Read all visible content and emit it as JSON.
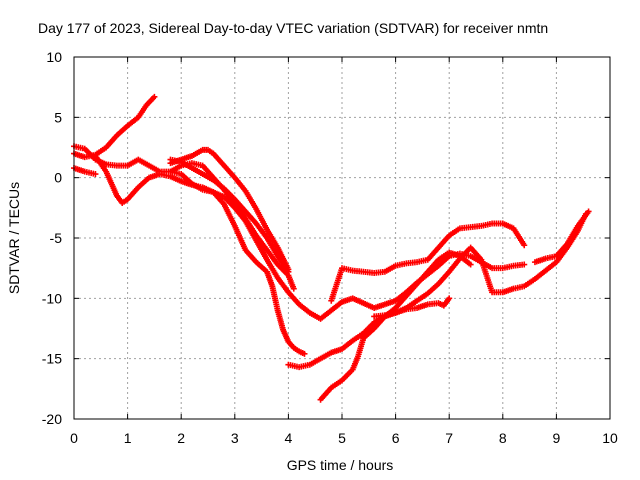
{
  "chart_data": {
    "type": "scatter",
    "title": "Day 177 of 2023, Sidereal Day-to-day VTEC variation (SDTVAR) for receiver nmtn",
    "xlabel": "GPS time / hours",
    "ylabel": "SDTVAR / TECUs",
    "xlim": [
      0,
      10
    ],
    "ylim": [
      -20,
      10
    ],
    "xticks": [
      0,
      1,
      2,
      3,
      4,
      5,
      6,
      7,
      8,
      9,
      10
    ],
    "yticks": [
      -20,
      -15,
      -10,
      -5,
      0,
      5,
      10
    ],
    "grid": true,
    "marker": "+",
    "color": "#ff0000",
    "series": [
      {
        "points": [
          [
            0.0,
            2.0
          ],
          [
            0.2,
            1.7
          ],
          [
            0.4,
            1.9
          ],
          [
            0.6,
            2.5
          ],
          [
            0.8,
            3.5
          ],
          [
            1.0,
            4.3
          ],
          [
            1.2,
            5.0
          ],
          [
            1.35,
            6.0
          ],
          [
            1.5,
            6.7
          ]
        ]
      },
      {
        "points": [
          [
            0.0,
            2.6
          ],
          [
            0.2,
            2.4
          ],
          [
            0.4,
            1.5
          ],
          [
            0.6,
            1.1
          ],
          [
            0.8,
            1.0
          ],
          [
            1.0,
            1.0
          ],
          [
            1.2,
            1.5
          ],
          [
            1.4,
            1.0
          ],
          [
            1.6,
            0.5
          ],
          [
            1.8,
            0.5
          ],
          [
            2.0,
            0.3
          ],
          [
            2.2,
            -0.5
          ],
          [
            2.4,
            -1.0
          ],
          [
            2.6,
            -1.2
          ],
          [
            2.8,
            -1.6
          ],
          [
            3.0,
            -2.5
          ],
          [
            3.2,
            -3.6
          ],
          [
            3.4,
            -5.2
          ],
          [
            3.6,
            -6.8
          ],
          [
            3.8,
            -8.3
          ],
          [
            4.0,
            -9.5
          ],
          [
            4.2,
            -10.5
          ],
          [
            4.4,
            -11.2
          ],
          [
            4.6,
            -11.7
          ],
          [
            4.8,
            -11.0
          ],
          [
            5.0,
            -10.3
          ],
          [
            5.2,
            -10.0
          ],
          [
            5.4,
            -10.4
          ],
          [
            5.6,
            -10.8
          ],
          [
            5.8,
            -10.5
          ],
          [
            6.0,
            -10.2
          ],
          [
            6.2,
            -9.5
          ],
          [
            6.4,
            -8.7
          ],
          [
            6.6,
            -8.0
          ],
          [
            6.8,
            -7.3
          ],
          [
            7.0,
            -6.5
          ],
          [
            7.2,
            -6.3
          ],
          [
            7.4,
            -6.5
          ],
          [
            7.6,
            -7.0
          ],
          [
            7.8,
            -7.5
          ],
          [
            8.0,
            -7.5
          ],
          [
            8.2,
            -7.3
          ],
          [
            8.4,
            -7.2
          ]
        ]
      },
      {
        "points": [
          [
            0.0,
            0.8
          ],
          [
            0.2,
            0.5
          ],
          [
            0.4,
            0.3
          ]
        ]
      },
      {
        "points": [
          [
            0.4,
            1.8
          ],
          [
            0.6,
            0.5
          ],
          [
            0.8,
            -1.5
          ],
          [
            0.9,
            -2.1
          ],
          [
            1.0,
            -1.8
          ],
          [
            1.2,
            -0.8
          ],
          [
            1.4,
            0.0
          ],
          [
            1.6,
            0.3
          ],
          [
            1.8,
            0.1
          ],
          [
            2.0,
            -0.3
          ],
          [
            2.2,
            -0.6
          ],
          [
            2.4,
            -0.8
          ],
          [
            2.6,
            -1.2
          ],
          [
            2.8,
            -2.2
          ],
          [
            3.0,
            -4.0
          ],
          [
            3.2,
            -6.0
          ],
          [
            3.4,
            -7.0
          ],
          [
            3.6,
            -7.8
          ],
          [
            3.7,
            -9.0
          ],
          [
            3.8,
            -11.0
          ],
          [
            3.9,
            -12.6
          ],
          [
            4.0,
            -13.6
          ],
          [
            4.1,
            -14.1
          ],
          [
            4.2,
            -14.4
          ],
          [
            4.3,
            -14.6
          ]
        ]
      },
      {
        "points": [
          [
            1.8,
            0.5
          ],
          [
            2.0,
            1.0
          ],
          [
            2.2,
            1.2
          ],
          [
            2.4,
            1.0
          ],
          [
            2.6,
            0.0
          ],
          [
            2.8,
            -1.0
          ],
          [
            3.0,
            -2.2
          ],
          [
            3.2,
            -3.4
          ],
          [
            3.4,
            -4.8
          ],
          [
            3.6,
            -6.0
          ],
          [
            3.8,
            -7.2
          ],
          [
            4.0,
            -8.1
          ],
          [
            4.1,
            -9.2
          ]
        ]
      },
      {
        "points": [
          [
            1.8,
            1.2
          ],
          [
            2.0,
            1.5
          ],
          [
            2.2,
            1.8
          ],
          [
            2.4,
            2.3
          ],
          [
            2.5,
            2.3
          ],
          [
            2.6,
            2.0
          ],
          [
            2.8,
            1.0
          ],
          [
            3.0,
            0.0
          ],
          [
            3.2,
            -1.1
          ],
          [
            3.4,
            -2.6
          ],
          [
            3.6,
            -4.3
          ],
          [
            3.8,
            -5.8
          ],
          [
            3.9,
            -6.7
          ],
          [
            4.0,
            -7.6
          ]
        ]
      },
      {
        "points": [
          [
            1.8,
            1.5
          ],
          [
            2.0,
            1.3
          ],
          [
            2.2,
            0.8
          ],
          [
            2.4,
            0.3
          ],
          [
            2.6,
            -0.2
          ],
          [
            2.8,
            -0.9
          ],
          [
            3.0,
            -1.8
          ],
          [
            3.2,
            -2.8
          ],
          [
            3.4,
            -3.8
          ],
          [
            3.6,
            -5.0
          ],
          [
            3.8,
            -6.5
          ],
          [
            4.0,
            -7.8
          ]
        ]
      },
      {
        "points": [
          [
            4.0,
            -15.5
          ],
          [
            4.2,
            -15.7
          ],
          [
            4.4,
            -15.5
          ],
          [
            4.6,
            -15.0
          ],
          [
            4.8,
            -14.5
          ],
          [
            5.0,
            -14.2
          ],
          [
            5.2,
            -13.5
          ],
          [
            5.4,
            -12.9
          ],
          [
            5.6,
            -12.0
          ],
          [
            5.8,
            -11.5
          ],
          [
            6.0,
            -11.2
          ],
          [
            6.2,
            -10.8
          ],
          [
            6.4,
            -10.2
          ],
          [
            6.6,
            -9.6
          ],
          [
            6.8,
            -8.8
          ],
          [
            7.0,
            -7.8
          ],
          [
            7.2,
            -6.7
          ],
          [
            7.4,
            -5.8
          ],
          [
            7.6,
            -6.8
          ],
          [
            7.8,
            -9.5
          ],
          [
            8.0,
            -9.5
          ],
          [
            8.2,
            -9.2
          ],
          [
            8.4,
            -9.0
          ],
          [
            8.6,
            -8.4
          ],
          [
            8.8,
            -7.7
          ],
          [
            9.0,
            -7.0
          ],
          [
            9.2,
            -5.8
          ],
          [
            9.4,
            -4.4
          ],
          [
            9.55,
            -3.0
          ]
        ]
      },
      {
        "points": [
          [
            4.6,
            -18.4
          ],
          [
            4.8,
            -17.4
          ],
          [
            5.0,
            -16.8
          ],
          [
            5.2,
            -15.9
          ],
          [
            5.3,
            -14.8
          ],
          [
            5.4,
            -13.3
          ],
          [
            5.6,
            -12.5
          ],
          [
            5.8,
            -11.5
          ],
          [
            6.0,
            -10.8
          ],
          [
            6.2,
            -9.8
          ],
          [
            6.4,
            -8.8
          ],
          [
            6.6,
            -7.8
          ],
          [
            6.8,
            -6.8
          ],
          [
            7.0,
            -6.2
          ],
          [
            7.2,
            -6.5
          ],
          [
            7.4,
            -7.2
          ]
        ]
      },
      {
        "points": [
          [
            5.6,
            -11.5
          ],
          [
            5.8,
            -11.4
          ],
          [
            6.0,
            -11.2
          ],
          [
            6.2,
            -10.9
          ],
          [
            6.4,
            -10.8
          ],
          [
            6.6,
            -10.5
          ],
          [
            6.8,
            -10.4
          ],
          [
            6.9,
            -10.6
          ],
          [
            7.0,
            -10.0
          ]
        ]
      },
      {
        "points": [
          [
            4.8,
            -10.2
          ],
          [
            5.0,
            -7.5
          ],
          [
            5.2,
            -7.7
          ],
          [
            5.4,
            -7.8
          ],
          [
            5.6,
            -7.9
          ],
          [
            5.8,
            -7.8
          ],
          [
            6.0,
            -7.3
          ],
          [
            6.2,
            -7.1
          ],
          [
            6.4,
            -7.0
          ],
          [
            6.6,
            -6.8
          ],
          [
            6.8,
            -5.8
          ],
          [
            7.0,
            -4.8
          ],
          [
            7.2,
            -4.2
          ],
          [
            7.4,
            -4.1
          ],
          [
            7.6,
            -4.0
          ],
          [
            7.8,
            -3.8
          ],
          [
            8.0,
            -3.8
          ],
          [
            8.2,
            -4.2
          ],
          [
            8.4,
            -5.6
          ]
        ]
      },
      {
        "points": [
          [
            8.6,
            -7.0
          ],
          [
            8.8,
            -6.7
          ],
          [
            9.0,
            -6.5
          ],
          [
            9.2,
            -5.5
          ],
          [
            9.4,
            -4.0
          ],
          [
            9.6,
            -2.8
          ]
        ]
      }
    ]
  }
}
